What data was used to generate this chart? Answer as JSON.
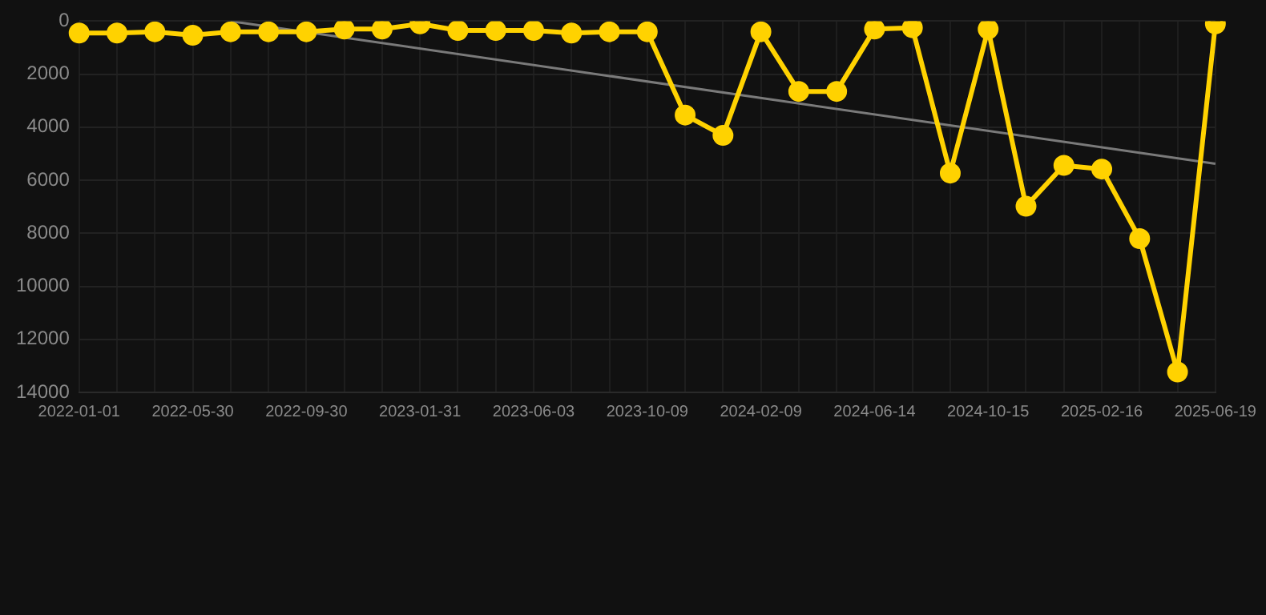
{
  "chart_data": {
    "type": "line",
    "categories": [
      "2022-01-01",
      null,
      null,
      "2022-05-30",
      null,
      null,
      "2022-09-30",
      null,
      null,
      "2023-01-31",
      null,
      null,
      "2023-06-03",
      null,
      null,
      "2023-10-09",
      null,
      null,
      "2024-02-09",
      null,
      null,
      "2024-06-14",
      null,
      null,
      "2024-10-15",
      null,
      null,
      "2025-02-16",
      null,
      null,
      "2025-06-19"
    ],
    "series": [
      {
        "color": "#ffd200",
        "values": [
          450,
          450,
          400,
          530,
          400,
          400,
          400,
          300,
          300,
          100,
          350,
          350,
          350,
          450,
          400,
          400,
          3540,
          4310,
          400,
          2650,
          2650,
          300,
          250,
          5730,
          300,
          6980,
          5440,
          5580,
          8200,
          13230,
          100
        ]
      },
      {
        "type": "line",
        "color": "#7a7a7a",
        "marker": "none",
        "values": [
          null,
          null,
          null,
          null,
          0,
          null,
          null,
          null,
          null,
          null,
          null,
          null,
          null,
          null,
          null,
          null,
          null,
          null,
          null,
          null,
          null,
          null,
          null,
          null,
          null,
          null,
          null,
          null,
          null,
          null,
          5380
        ]
      }
    ],
    "ylim": [
      14000,
      0
    ],
    "yticks": [
      0,
      2000,
      4000,
      6000,
      8000,
      10000,
      12000,
      14000
    ],
    "grid": true,
    "marker": "circle",
    "line_style": "solid"
  }
}
